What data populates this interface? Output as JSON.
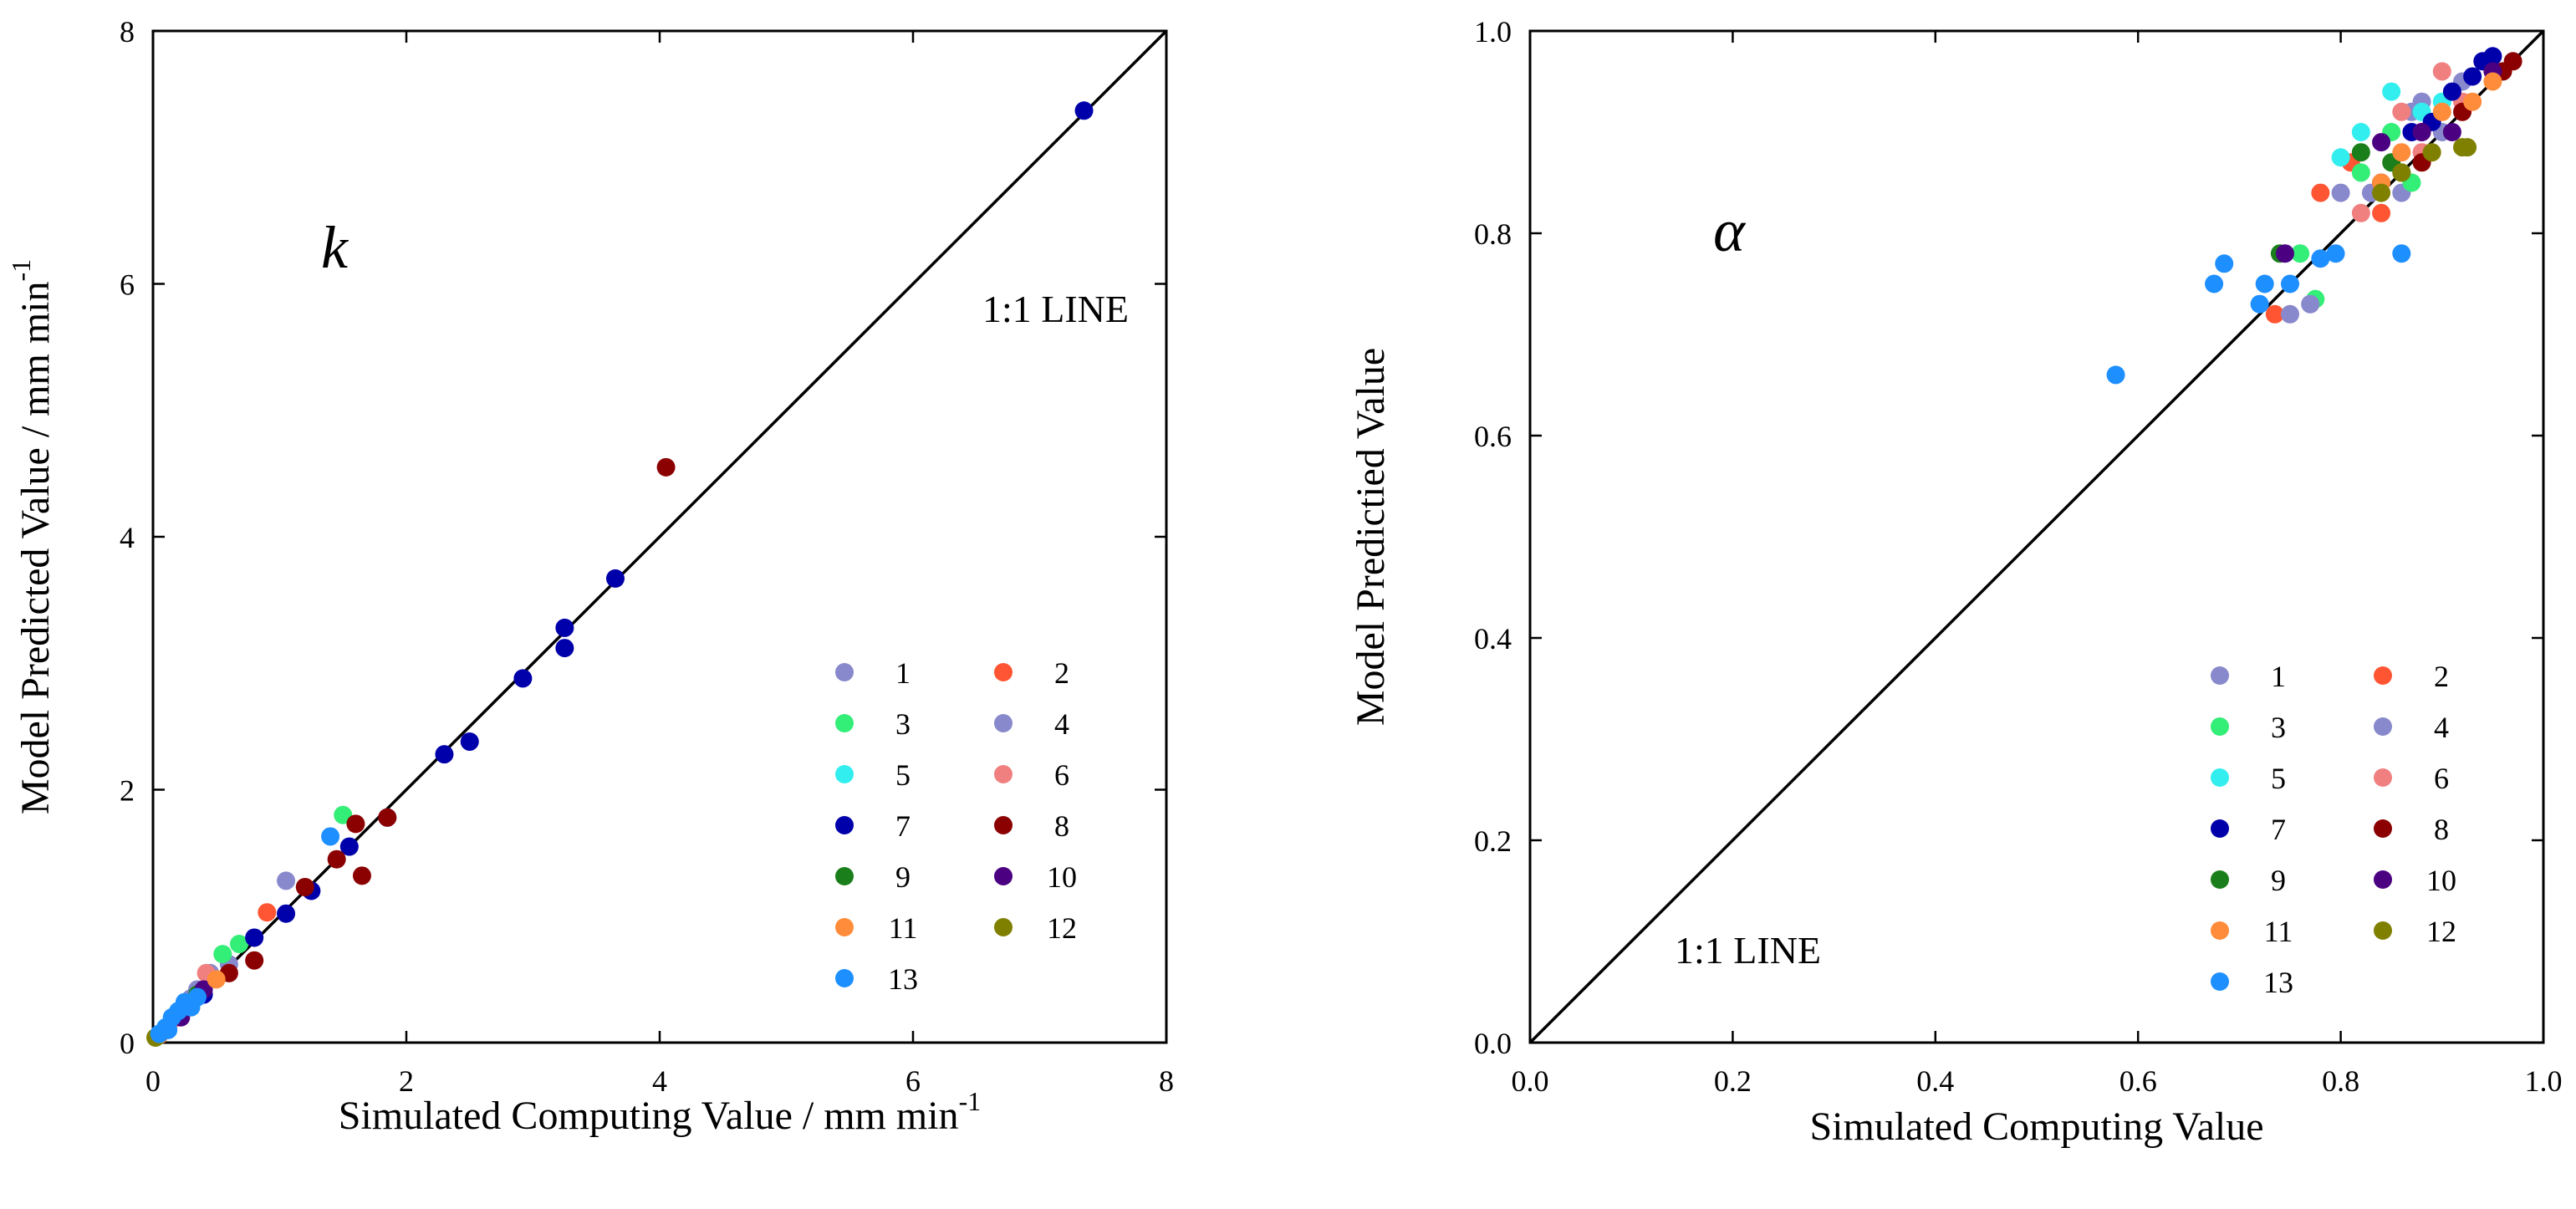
{
  "chart_data": [
    {
      "type": "scatter",
      "panel_label": "k",
      "xlabel": "Simulated Computing Value / mm min",
      "xlabel_sup": "-1",
      "ylabel": "Model Predicted Value / mm min",
      "ylabel_sup": "-1",
      "xlim": [
        0,
        8
      ],
      "ylim": [
        0,
        8
      ],
      "xticks": [
        "0",
        "2",
        "4",
        "6",
        "8"
      ],
      "yticks": [
        "0",
        "2",
        "4",
        "6",
        "8"
      ],
      "ref_line_label": "1:1 LINE",
      "legend_position": "bottom-right",
      "series": [
        {
          "name": "1",
          "color": "#8888CC",
          "points": [
            [
              0.3,
              0.35
            ],
            [
              0.45,
              0.55
            ],
            [
              1.05,
              1.28
            ],
            [
              0.6,
              0.62
            ]
          ]
        },
        {
          "name": "2",
          "color": "#FF5533",
          "points": [
            [
              0.9,
              1.03
            ],
            [
              0.25,
              0.28
            ]
          ]
        },
        {
          "name": "3",
          "color": "#33EE77",
          "points": [
            [
              1.5,
              1.8
            ],
            [
              0.68,
              0.78
            ],
            [
              0.55,
              0.7
            ]
          ]
        },
        {
          "name": "4",
          "color": "#8888CC",
          "points": [
            [
              0.35,
              0.42
            ],
            [
              0.2,
              0.22
            ]
          ]
        },
        {
          "name": "5",
          "color": "#33EEEE",
          "points": [
            [
              0.18,
              0.2
            ],
            [
              0.1,
              0.12
            ]
          ]
        },
        {
          "name": "6",
          "color": "#F08080",
          "points": [
            [
              0.42,
              0.55
            ],
            [
              0.15,
              0.18
            ]
          ]
        },
        {
          "name": "7",
          "color": "#0000AA",
          "points": [
            [
              7.35,
              7.37
            ],
            [
              3.65,
              3.67
            ],
            [
              3.25,
              3.28
            ],
            [
              3.25,
              3.12
            ],
            [
              2.92,
              2.88
            ],
            [
              2.5,
              2.38
            ],
            [
              2.3,
              2.28
            ],
            [
              1.85,
              1.78
            ],
            [
              1.55,
              1.55
            ],
            [
              1.25,
              1.2
            ],
            [
              1.05,
              1.02
            ],
            [
              0.8,
              0.83
            ],
            [
              0.4,
              0.38
            ]
          ]
        },
        {
          "name": "8",
          "color": "#8B0000",
          "points": [
            [
              4.05,
              4.55
            ],
            [
              1.85,
              1.78
            ],
            [
              1.6,
              1.73
            ],
            [
              1.65,
              1.32
            ],
            [
              1.45,
              1.45
            ],
            [
              1.2,
              1.23
            ],
            [
              0.8,
              0.65
            ],
            [
              0.6,
              0.55
            ],
            [
              0.3,
              0.3
            ]
          ]
        },
        {
          "name": "9",
          "color": "#1A7F1A",
          "points": [
            [
              0.35,
              0.38
            ],
            [
              0.1,
              0.1
            ]
          ]
        },
        {
          "name": "10",
          "color": "#4B0082",
          "points": [
            [
              0.4,
              0.42
            ],
            [
              0.22,
              0.2
            ]
          ]
        },
        {
          "name": "11",
          "color": "#FF8C3A",
          "points": [
            [
              0.5,
              0.5
            ],
            [
              0.05,
              0.06
            ]
          ]
        },
        {
          "name": "12",
          "color": "#808000",
          "points": [
            [
              0.02,
              0.04
            ],
            [
              0.3,
              0.28
            ]
          ]
        },
        {
          "name": "13",
          "color": "#1E8FFF",
          "points": [
            [
              1.4,
              1.63
            ],
            [
              0.05,
              0.07
            ],
            [
              0.1,
              0.12
            ],
            [
              0.15,
              0.2
            ],
            [
              0.2,
              0.25
            ],
            [
              0.25,
              0.32
            ],
            [
              0.3,
              0.28
            ],
            [
              0.35,
              0.36
            ],
            [
              0.12,
              0.1
            ]
          ]
        }
      ]
    },
    {
      "type": "scatter",
      "panel_label": "α",
      "xlabel": "Simulated Computing Value",
      "ylabel": "Model Predictied Value",
      "xlim": [
        0.0,
        1.0
      ],
      "ylim": [
        0.0,
        1.0
      ],
      "xticks": [
        "0.0",
        "0.2",
        "0.4",
        "0.6",
        "0.8",
        "1.0"
      ],
      "yticks": [
        "0.0",
        "0.2",
        "0.4",
        "0.6",
        "0.8",
        "1.0"
      ],
      "ref_line_label": "1:1 LINE",
      "legend_position": "bottom-right",
      "series": [
        {
          "name": "1",
          "color": "#8888CC",
          "points": [
            [
              0.77,
              0.73
            ],
            [
              0.8,
              0.84
            ],
            [
              0.86,
              0.84
            ],
            [
              0.9,
              0.9
            ],
            [
              0.88,
              0.93
            ],
            [
              0.92,
              0.95
            ]
          ]
        },
        {
          "name": "2",
          "color": "#FF5533",
          "points": [
            [
              0.735,
              0.72
            ],
            [
              0.78,
              0.84
            ],
            [
              0.81,
              0.87
            ],
            [
              0.84,
              0.82
            ],
            [
              0.88,
              0.9
            ]
          ]
        },
        {
          "name": "3",
          "color": "#33EE77",
          "points": [
            [
              0.775,
              0.735
            ],
            [
              0.76,
              0.78
            ],
            [
              0.82,
              0.86
            ],
            [
              0.87,
              0.85
            ],
            [
              0.85,
              0.9
            ]
          ]
        },
        {
          "name": "4",
          "color": "#8888CC",
          "points": [
            [
              0.75,
              0.72
            ],
            [
              0.77,
              0.73
            ],
            [
              0.83,
              0.84
            ],
            [
              0.87,
              0.92
            ]
          ]
        },
        {
          "name": "5",
          "color": "#33EEEE",
          "points": [
            [
              0.8,
              0.875
            ],
            [
              0.85,
              0.94
            ],
            [
              0.82,
              0.9
            ],
            [
              0.88,
              0.92
            ],
            [
              0.9,
              0.93
            ]
          ]
        },
        {
          "name": "6",
          "color": "#F08080",
          "points": [
            [
              0.82,
              0.82
            ],
            [
              0.86,
              0.92
            ],
            [
              0.9,
              0.96
            ],
            [
              0.92,
              0.93
            ],
            [
              0.88,
              0.88
            ]
          ]
        },
        {
          "name": "7",
          "color": "#0000AA",
          "points": [
            [
              0.95,
              0.975
            ],
            [
              0.94,
              0.97
            ],
            [
              0.93,
              0.955
            ],
            [
              0.91,
              0.94
            ],
            [
              0.87,
              0.9
            ],
            [
              0.89,
              0.91
            ]
          ]
        },
        {
          "name": "8",
          "color": "#8B0000",
          "points": [
            [
              0.97,
              0.97
            ],
            [
              0.92,
              0.92
            ],
            [
              0.88,
              0.87
            ],
            [
              0.84,
              0.85
            ],
            [
              0.96,
              0.96
            ]
          ]
        },
        {
          "name": "9",
          "color": "#1A7F1A",
          "points": [
            [
              0.74,
              0.78
            ],
            [
              0.82,
              0.88
            ],
            [
              0.85,
              0.87
            ],
            [
              0.86,
              0.86
            ]
          ]
        },
        {
          "name": "10",
          "color": "#4B0082",
          "points": [
            [
              0.745,
              0.78
            ],
            [
              0.84,
              0.89
            ],
            [
              0.88,
              0.9
            ],
            [
              0.91,
              0.9
            ],
            [
              0.95,
              0.96
            ]
          ]
        },
        {
          "name": "11",
          "color": "#FF8C3A",
          "points": [
            [
              0.86,
              0.88
            ],
            [
              0.9,
              0.92
            ],
            [
              0.93,
              0.93
            ],
            [
              0.95,
              0.95
            ],
            [
              0.84,
              0.85
            ]
          ]
        },
        {
          "name": "12",
          "color": "#808000",
          "points": [
            [
              0.84,
              0.84
            ],
            [
              0.89,
              0.88
            ],
            [
              0.92,
              0.885
            ],
            [
              0.925,
              0.885
            ],
            [
              0.86,
              0.86
            ]
          ]
        },
        {
          "name": "13",
          "color": "#1E8FFF",
          "points": [
            [
              0.578,
              0.66
            ],
            [
              0.675,
              0.75
            ],
            [
              0.685,
              0.77
            ],
            [
              0.72,
              0.73
            ],
            [
              0.725,
              0.75
            ],
            [
              0.75,
              0.75
            ],
            [
              0.78,
              0.775
            ],
            [
              0.795,
              0.78
            ],
            [
              0.86,
              0.78
            ]
          ]
        }
      ]
    }
  ]
}
